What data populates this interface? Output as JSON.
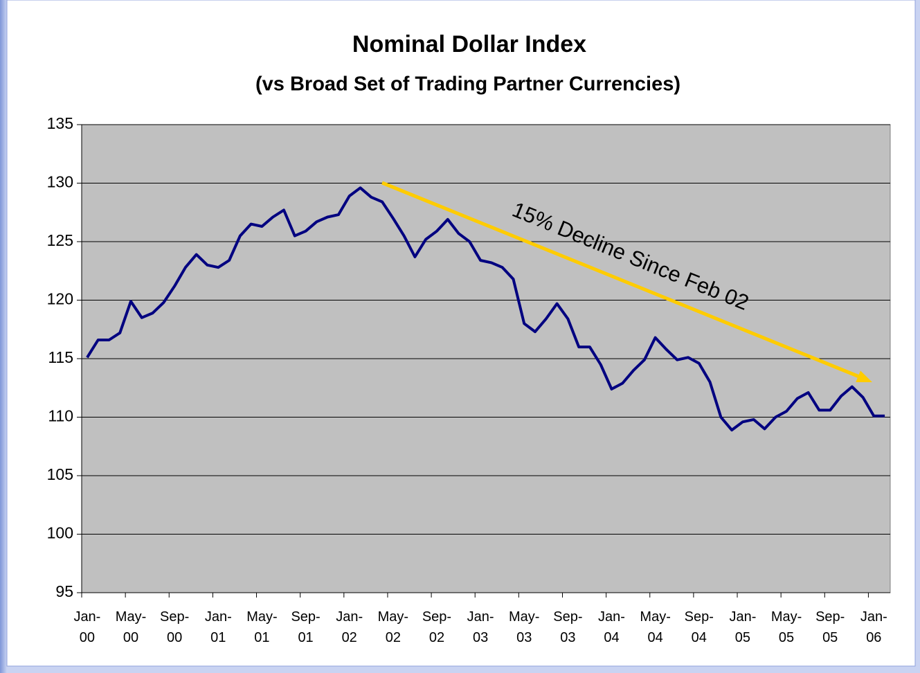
{
  "chart_data": {
    "type": "line",
    "title": "Nominal Dollar Index",
    "subtitle": "(vs Broad Set of Trading Partner Currencies)",
    "annotation": "15% Decline Since Feb 02",
    "categories": [
      "Jan-00",
      null,
      null,
      null,
      "May-00",
      null,
      null,
      null,
      "Sep-00",
      null,
      null,
      null,
      "Jan-01",
      null,
      null,
      null,
      "May-01",
      null,
      null,
      null,
      "Sep-01",
      null,
      null,
      null,
      "Jan-02",
      null,
      null,
      null,
      "May-02",
      null,
      null,
      null,
      "Sep-02",
      null,
      null,
      null,
      "Jan-03",
      null,
      null,
      null,
      "May-03",
      null,
      null,
      null,
      "Sep-03",
      null,
      null,
      null,
      "Jan-04",
      null,
      null,
      null,
      "May-04",
      null,
      null,
      null,
      "Sep-04",
      null,
      null,
      null,
      "Jan-05",
      null,
      null,
      null,
      "May-05",
      null,
      null,
      null,
      "Sep-05",
      null,
      null,
      null,
      "Jan-06",
      null
    ],
    "series": [
      {
        "name": "Nominal Dollar Index",
        "color": "#000080",
        "values": [
          115.1,
          116.6,
          116.6,
          117.2,
          119.9,
          118.5,
          118.9,
          119.8,
          121.2,
          122.8,
          123.9,
          123.0,
          122.8,
          123.4,
          125.5,
          126.5,
          126.3,
          127.1,
          127.7,
          125.5,
          125.9,
          126.7,
          127.1,
          127.3,
          128.9,
          129.6,
          128.8,
          128.4,
          127.0,
          125.5,
          123.7,
          125.2,
          125.9,
          126.9,
          125.7,
          125.0,
          123.4,
          123.2,
          122.8,
          121.8,
          118.0,
          117.3,
          118.4,
          119.7,
          118.4,
          116.0,
          116.0,
          114.5,
          112.4,
          112.9,
          114.0,
          114.9,
          116.8,
          115.8,
          114.9,
          115.1,
          114.6,
          113.0,
          110.0,
          108.9,
          109.6,
          109.8,
          109.0,
          110.0,
          110.5,
          111.6,
          112.1,
          110.6,
          110.6,
          111.8,
          112.6,
          111.7,
          110.1,
          110.1
        ]
      }
    ],
    "ylim": [
      95,
      135
    ],
    "yticks": [
      95,
      100,
      105,
      110,
      115,
      120,
      125,
      130,
      135
    ],
    "grid": true,
    "plot_background": "#c0c0c0",
    "annotation_color": "#ffcc00"
  }
}
